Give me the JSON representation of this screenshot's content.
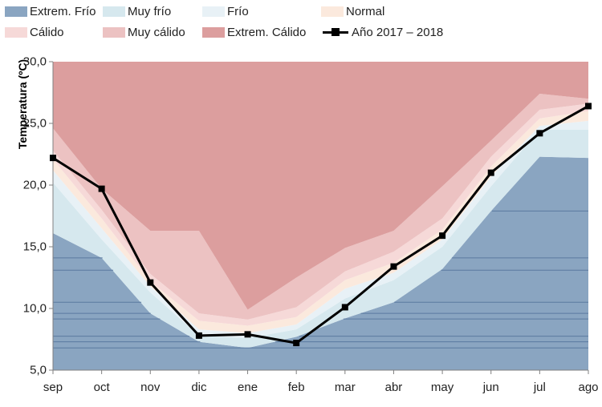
{
  "chart_data": {
    "type": "area",
    "title": "",
    "xlabel": "",
    "ylabel": "Temperatura (ºC)",
    "ylim": [
      5,
      30
    ],
    "yticks": [
      "5,0",
      "10,0",
      "15,0",
      "20,0",
      "25,0",
      "30,0"
    ],
    "categories": [
      "sep",
      "oct",
      "nov",
      "dic",
      "ene",
      "feb",
      "mar",
      "abr",
      "may",
      "jun",
      "jul",
      "ago"
    ],
    "legend_position": "top",
    "bands": [
      {
        "name": "Extrem. Frío",
        "color": "#8aa5c1",
        "upper": [
          16.1,
          14.1,
          9.6,
          7.3,
          6.8,
          7.7,
          9.2,
          10.5,
          13.2,
          17.9,
          22.3,
          22.2
        ]
      },
      {
        "name": "Muy frío",
        "color": "#d6e8ee",
        "upper": [
          20.2,
          15.6,
          11.3,
          7.8,
          7.6,
          8.3,
          10.8,
          12.3,
          15.0,
          19.9,
          24.5,
          24.5
        ]
      },
      {
        "name": "Frío",
        "color": "#e8f1f6",
        "upper": [
          21.2,
          16.5,
          11.8,
          8.3,
          8.0,
          8.7,
          11.6,
          12.9,
          15.6,
          20.7,
          24.8,
          25.2
        ]
      },
      {
        "name": "Normal",
        "color": "#fbe9dd",
        "upper": [
          22.1,
          17.3,
          12.2,
          9.0,
          8.6,
          9.3,
          12.3,
          13.7,
          16.4,
          21.5,
          25.4,
          26.0
        ]
      },
      {
        "name": "Cálido",
        "color": "#f6d9d8",
        "upper": [
          22.8,
          18.0,
          12.8,
          9.6,
          9.1,
          10.1,
          13.0,
          14.6,
          17.3,
          22.3,
          26.1,
          26.6
        ]
      },
      {
        "name": "Muy cálido",
        "color": "#ecc2c2",
        "upper": [
          24.6,
          19.7,
          16.3,
          16.3,
          9.9,
          12.5,
          14.9,
          16.3,
          19.9,
          23.6,
          27.4,
          27.0
        ]
      },
      {
        "name": "Extrem. Cálido",
        "color": "#dc9e9e",
        "upper": [
          30,
          30,
          30,
          30,
          30,
          30,
          30,
          30,
          30,
          30,
          30,
          30
        ]
      }
    ],
    "series": [
      {
        "name": "Año 2017 – 2018",
        "color": "#000000",
        "values": [
          22.2,
          19.7,
          12.1,
          7.8,
          7.9,
          7.2,
          10.1,
          13.4,
          15.9,
          21.0,
          24.2,
          26.4
        ]
      }
    ],
    "grid": false
  }
}
